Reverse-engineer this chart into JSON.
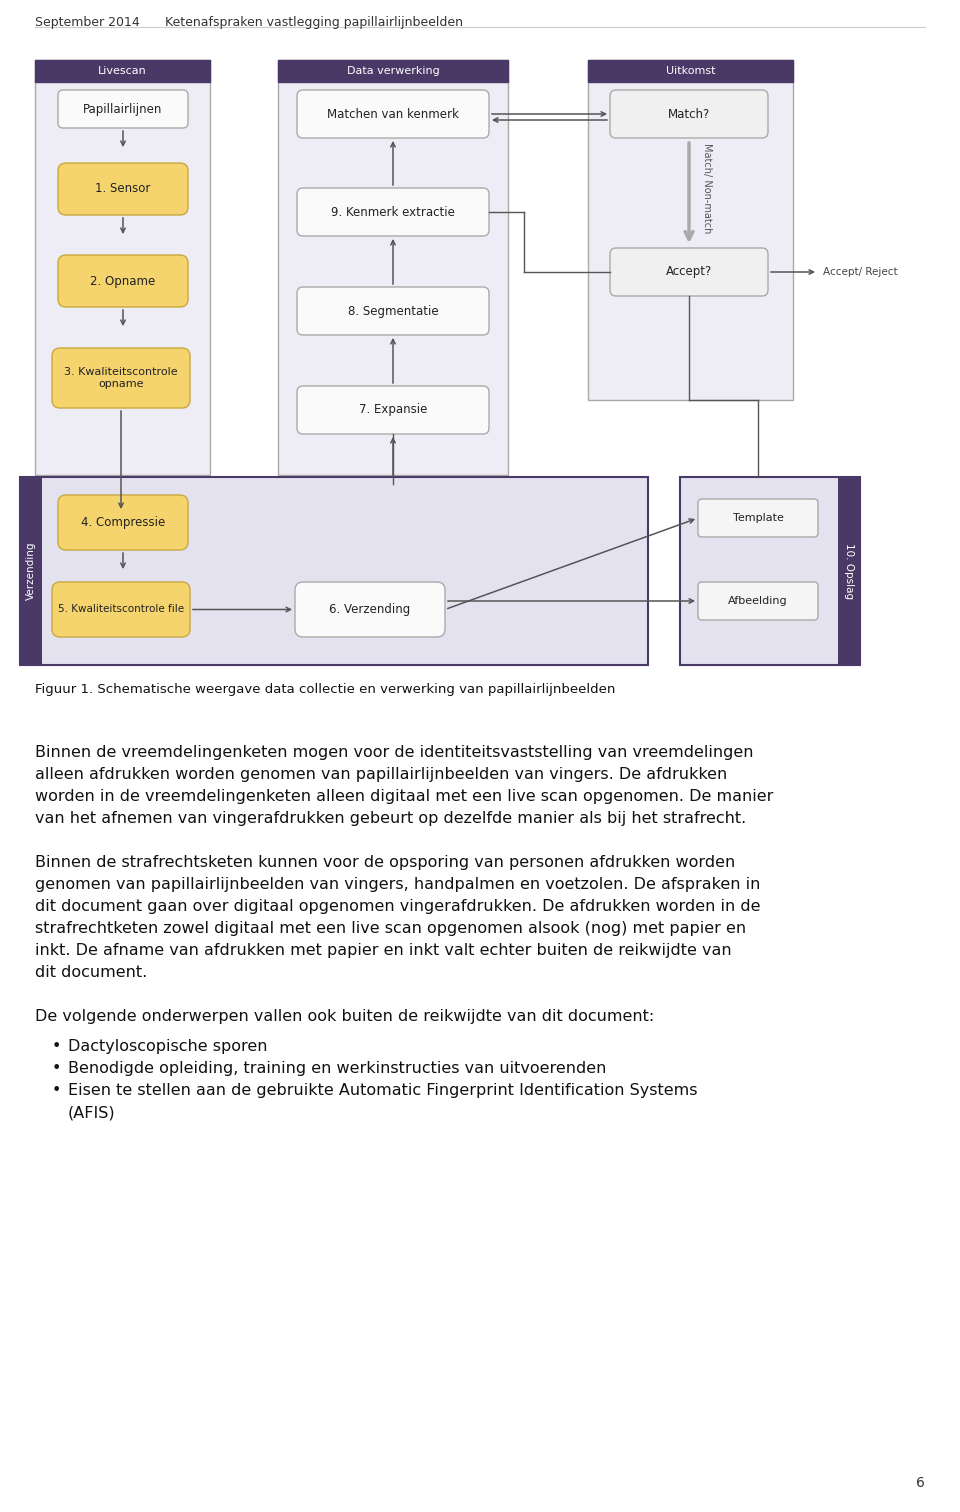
{
  "header_left": "September 2014",
  "header_right": "Ketenafspraken vastlegging papillairlijnbeelden",
  "page_number": "6",
  "figure_caption": "Figuur 1. Schematische weergave data collectie en verwerking van papillairlijnbeelden",
  "body_paragraphs": [
    "Binnen de vreemdelingenketen mogen voor de identiteitsvaststelling van vreemdelingen alleen afdrukken worden genomen van papillairlijnbeelden van vingers. De afdrukken worden in de vreemdelingenketen alleen digitaal met een live scan opgenomen. De manier van het afnemen van vingerafdrukken gebeurt op dezelfde manier als bij het strafrecht.",
    "Binnen de strafrechtsketen kunnen voor de opsporing van personen afdrukken worden genomen van papillairlijnbeelden van vingers, handpalmen en voetzolen. De afspraken in dit document gaan over digitaal opgenomen vingerafdrukken. De afdrukken worden in de strafrechtketen zowel digitaal met een live scan opgenomen alsook (nog) met papier en inkt. De afname van afdrukken met papier en inkt valt echter buiten de reikwijdte van dit document.",
    "De volgende onderwerpen vallen ook buiten de reikwijdte van dit document:"
  ],
  "bullet_items": [
    "Dactyloscopische sporen",
    "Benodigde opleiding, training en werkinstructies van uitvoerenden",
    "Eisen te stellen aan de gebruikte Automatic Fingerprint Identification Systems\n(AFIS)"
  ]
}
